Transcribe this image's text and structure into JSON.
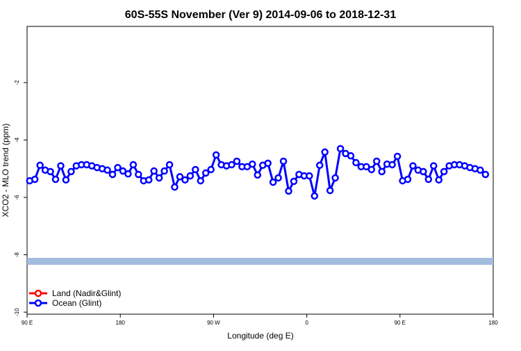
{
  "chart_data": {
    "type": "line",
    "title": "60S-55S November (Ver 9)   2014-09-06 to 2018-12-31",
    "x_label": "Longitude (deg E)",
    "y_label": "XCO2 - MLO trend (ppm)",
    "xlim": [
      90,
      540
    ],
    "xticks": [
      {
        "value": 90,
        "label": "90 E"
      },
      {
        "value": 180,
        "label": "180"
      },
      {
        "value": 270,
        "label": "90 W"
      },
      {
        "value": 360,
        "label": "0"
      },
      {
        "value": 450,
        "label": "90 E"
      },
      {
        "value": 540,
        "label": "180"
      }
    ],
    "ylim": [
      -10.07,
      -0.04
    ],
    "yticks": [
      -10,
      -8,
      -6,
      -4,
      -2
    ],
    "legend": "bottom-left",
    "reference_band": {
      "value": -8.23,
      "color": "#a3bce0"
    },
    "x": [
      92.5,
      97.5,
      102.5,
      107.5,
      112.5,
      117.5,
      122.5,
      127.5,
      132.5,
      137.5,
      142.5,
      147.5,
      152.5,
      157.5,
      162.5,
      167.5,
      172.5,
      177.5,
      182.5,
      187.5,
      192.5,
      197.5,
      202.5,
      207.5,
      212.5,
      217.5,
      222.5,
      227.5,
      232.5,
      237.5,
      242.5,
      247.5,
      252.5,
      257.5,
      262.5,
      267.5,
      272.5,
      277.5,
      282.5,
      287.5,
      292.5,
      297.5,
      302.5,
      307.5,
      312.5,
      317.5,
      322.5,
      327.5,
      332.5,
      337.5,
      342.5,
      347.5,
      352.5,
      357.5,
      362.5,
      367.5,
      372.5,
      377.5,
      382.5,
      387.5,
      392.5,
      397.5,
      402.5,
      407.5,
      412.5,
      417.5,
      422.5,
      427.5,
      432.5,
      437.5,
      442.5,
      447.5,
      452.5,
      457.5,
      462.5,
      467.5,
      472.5,
      477.5,
      482.5,
      487.5,
      492.5,
      497.5,
      502.5,
      507.5,
      512.5,
      517.5,
      522.5,
      527.5,
      532.5
    ],
    "series": [
      {
        "name": "Land (Nadir&Glint)",
        "color": "#ff0000",
        "values": [
          null,
          null,
          null,
          null,
          null,
          null,
          null,
          null,
          null,
          null,
          null,
          null,
          null,
          null,
          null,
          null,
          null,
          null,
          null,
          null,
          null,
          null,
          null,
          null,
          null,
          null,
          null,
          null,
          null,
          null,
          null,
          null,
          null,
          null,
          null,
          null,
          null,
          null,
          null,
          null,
          null,
          null,
          null,
          null,
          null,
          null,
          null,
          null,
          null,
          null,
          null,
          null,
          null,
          null,
          null,
          null,
          null,
          null,
          null,
          null,
          null,
          null,
          null,
          null,
          null,
          null,
          null,
          null,
          null,
          null,
          null,
          null,
          null,
          null,
          null,
          null,
          null,
          null,
          null,
          null,
          null,
          null,
          null,
          null,
          null,
          null,
          null,
          null,
          null
        ]
      },
      {
        "name": "Ocean (Glint)",
        "color": "#0000ff",
        "values": [
          -5.42,
          -5.37,
          -4.88,
          -5.05,
          -5.1,
          -5.37,
          -4.9,
          -5.39,
          -5.1,
          -4.9,
          -4.86,
          -4.86,
          -4.9,
          -4.96,
          -5.0,
          -5.05,
          -5.2,
          -4.96,
          -5.08,
          -5.18,
          -4.86,
          -5.2,
          -5.42,
          -5.39,
          -5.08,
          -5.32,
          -5.08,
          -4.86,
          -5.64,
          -5.28,
          -5.39,
          -5.25,
          -5.03,
          -5.42,
          -5.15,
          -5.03,
          -4.52,
          -4.86,
          -4.9,
          -4.86,
          -4.74,
          -4.93,
          -4.93,
          -4.84,
          -5.22,
          -4.88,
          -4.81,
          -5.47,
          -5.32,
          -4.74,
          -5.78,
          -5.44,
          -5.2,
          -5.25,
          -5.25,
          -5.95,
          -4.88,
          -4.42,
          -5.76,
          -5.32,
          -4.3,
          -4.47,
          -4.55,
          -4.79,
          -4.93,
          -4.93,
          -5.03,
          -4.74,
          -5.1,
          -4.84,
          -4.86,
          -4.57,
          -5.42,
          -5.37,
          -4.9,
          -5.05,
          -5.1,
          -5.37,
          -4.9,
          -5.39,
          -5.1,
          -4.9,
          -4.86,
          -4.86,
          -4.9,
          -4.96,
          -5.0,
          -5.05,
          -5.2
        ]
      }
    ]
  }
}
